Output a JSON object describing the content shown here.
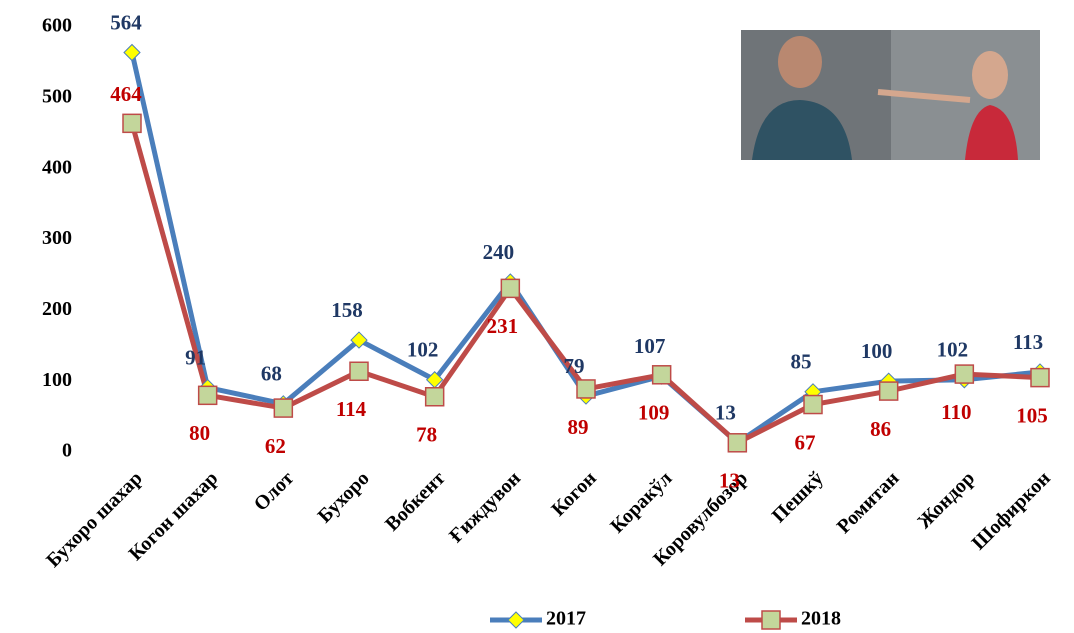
{
  "chart_data": {
    "type": "line",
    "categories": [
      "Бухоро шахар",
      "Когон шахар",
      "Олот",
      "Бухоро",
      "Вобкент",
      "Ғиждувон",
      "Когон",
      "Коракўл",
      "Коровулбозор",
      "Пешкў",
      "Ромитан",
      "Жондор",
      "Шофиркон"
    ],
    "series": [
      {
        "name": "2017",
        "color": "#4a7ebb",
        "marker": "diamond",
        "marker_color": "#ffff00",
        "label_color": "#1f3864",
        "values": [
          564,
          91,
          68,
          158,
          102,
          240,
          79,
          107,
          13,
          85,
          100,
          102,
          113
        ]
      },
      {
        "name": "2018",
        "color": "#be4b48",
        "marker": "square",
        "marker_color": "#c3d69b",
        "label_color": "#c00000",
        "values": [
          464,
          80,
          62,
          114,
          78,
          231,
          89,
          109,
          13,
          67,
          86,
          110,
          105
        ]
      }
    ],
    "ylim": [
      0,
      600
    ],
    "yticks": [
      0,
      100,
      200,
      300,
      400,
      500,
      600
    ],
    "grid": false,
    "legend": "bottom"
  }
}
